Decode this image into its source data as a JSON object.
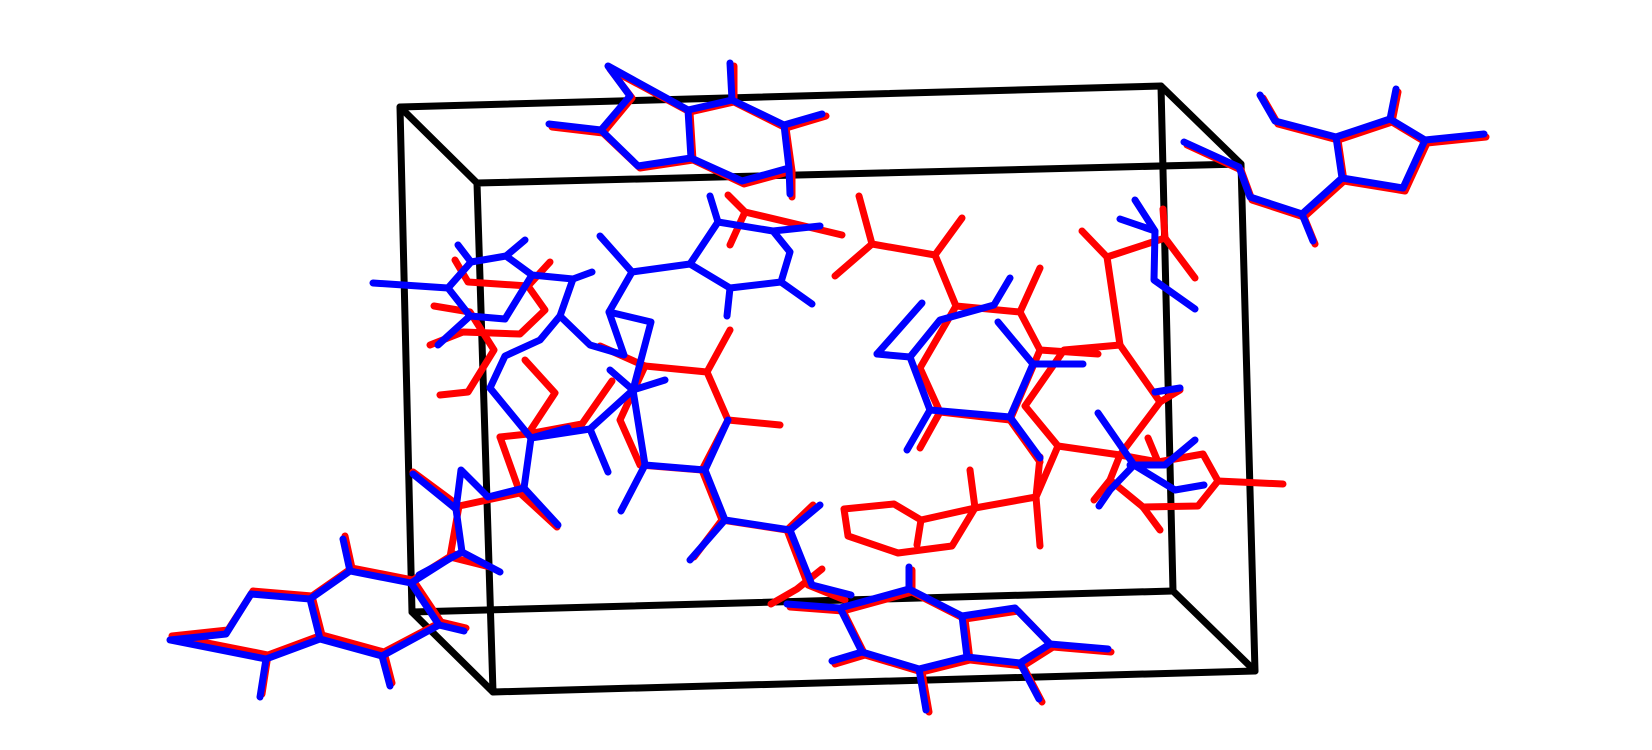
{
  "viewer": {
    "background": "#ffffff",
    "unit_cell_color": "#000000",
    "structures": [
      {
        "id": "structure-a",
        "color": "#ff0000"
      },
      {
        "id": "structure-b",
        "color": "#0000ff"
      }
    ]
  }
}
